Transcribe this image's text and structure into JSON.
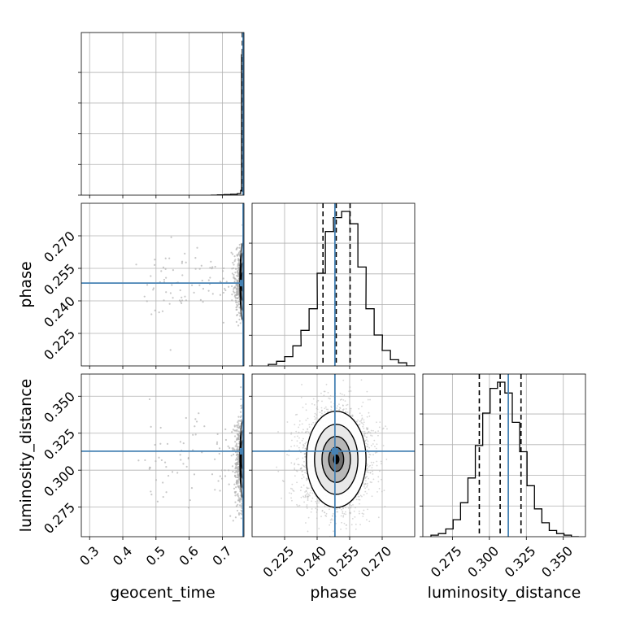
{
  "chart_data": {
    "type": "corner",
    "parameters": [
      "geocent_time",
      "phase",
      "luminosity_distance"
    ],
    "axis_labels": {
      "geocent_time": "geocent_time",
      "phase": "phase",
      "luminosity_distance": "luminosity_distance"
    },
    "ranges": {
      "geocent_time": [
        0.275,
        0.765
      ],
      "phase": [
        0.21,
        0.285
      ],
      "luminosity_distance": [
        0.255,
        0.365
      ]
    },
    "ticks": {
      "geocent_time": [
        0.3,
        0.4,
        0.5,
        0.6,
        0.7
      ],
      "phase": [
        0.225,
        0.24,
        0.255,
        0.27
      ],
      "luminosity_distance": [
        0.275,
        0.3,
        0.325,
        0.35
      ]
    },
    "tick_labels": {
      "geocent_time": [
        "0.3",
        "0.4",
        "0.5",
        "0.6",
        "0.7"
      ],
      "phase": [
        "0.225",
        "0.240",
        "0.255",
        "0.270"
      ],
      "luminosity_distance": [
        "0.275",
        "0.300",
        "0.325",
        "0.350"
      ]
    },
    "truths": {
      "geocent_time": 0.7625,
      "phase": 0.2482,
      "luminosity_distance": 0.3128
    },
    "quantiles": {
      "geocent_time": [
        0.7604,
        0.7622,
        0.7637
      ],
      "phase": [
        0.2427,
        0.2488,
        0.2552
      ],
      "luminosity_distance": [
        0.2932,
        0.3073,
        0.3214
      ]
    },
    "histograms": {
      "geocent_time": {
        "edges": [
          0.665,
          0.675,
          0.685,
          0.695,
          0.705,
          0.715,
          0.725,
          0.735,
          0.745,
          0.755,
          0.758,
          0.762,
          0.765
        ],
        "counts": [
          0,
          0,
          0.002,
          0.002,
          0.004,
          0.004,
          0.006,
          0.006,
          0.01,
          0.03,
          0.91,
          1.0
        ]
      },
      "phase": {
        "bins": [
          0.2175,
          0.2213,
          0.225,
          0.2288,
          0.2325,
          0.2363,
          0.24,
          0.2438,
          0.2475,
          0.2513,
          0.255,
          0.2588,
          0.2625,
          0.2663,
          0.27,
          0.2738,
          0.2775,
          0.2813
        ],
        "counts": [
          0.01,
          0.03,
          0.06,
          0.13,
          0.23,
          0.37,
          0.6,
          0.87,
          0.96,
          1.0,
          0.92,
          0.64,
          0.37,
          0.2,
          0.1,
          0.04,
          0.02,
          0.0
        ]
      },
      "luminosity_distance": {
        "bins": [
          0.2605,
          0.2655,
          0.2705,
          0.2755,
          0.2805,
          0.2855,
          0.2905,
          0.2955,
          0.3005,
          0.3055,
          0.3105,
          0.3155,
          0.3205,
          0.3255,
          0.3305,
          0.3355,
          0.3405,
          0.3455,
          0.3505,
          0.3555
        ],
        "counts": [
          0.01,
          0.02,
          0.05,
          0.11,
          0.22,
          0.38,
          0.59,
          0.8,
          0.96,
          1.0,
          0.93,
          0.74,
          0.55,
          0.33,
          0.18,
          0.09,
          0.04,
          0.02,
          0.01,
          0.0
        ]
      }
    },
    "grid": true,
    "colors": {
      "truth": "#4682b4",
      "hist": "#000000",
      "points": "#b0b0b0",
      "contour_fill": "#707070"
    }
  }
}
